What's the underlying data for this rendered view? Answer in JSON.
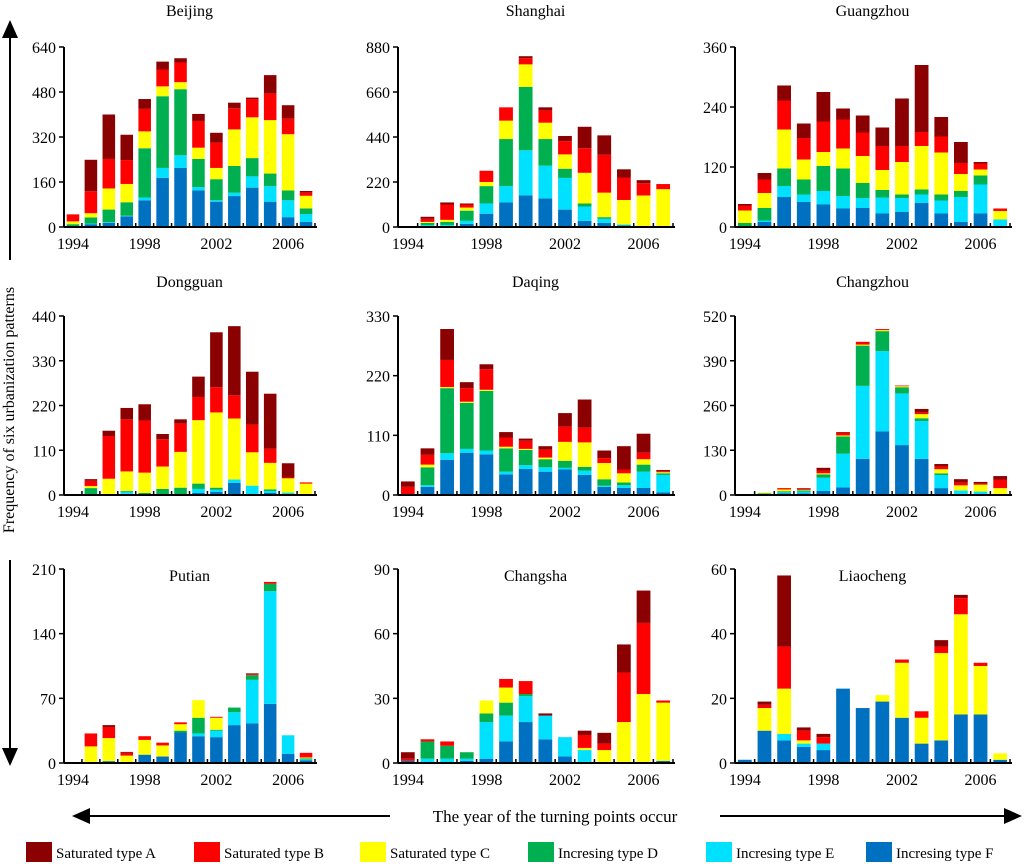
{
  "figure": {
    "ylabel": "Frequency of six urbanization patterns",
    "xlabel": "The year of the turning points occur"
  },
  "chart_data": {
    "type": "bar",
    "stacked": true,
    "years": [
      1994,
      1995,
      1996,
      1997,
      1998,
      1999,
      2000,
      2001,
      2002,
      2003,
      2004,
      2005,
      2006,
      2007
    ],
    "xtick_labels": [
      "1994",
      "1998",
      "2002",
      "2006"
    ],
    "legend": {
      "placement": "bottom",
      "entries": [
        {
          "key": "F",
          "label": "Incresing type F",
          "color": "#0070C0"
        },
        {
          "key": "E",
          "label": "Incresing type E",
          "color": "#00E0FF"
        },
        {
          "key": "D",
          "label": "Incresing type D",
          "color": "#00B050"
        },
        {
          "key": "C",
          "label": "Saturated type C",
          "color": "#FFFF00"
        },
        {
          "key": "B",
          "label": "Saturated type B",
          "color": "#FF0000"
        },
        {
          "key": "A",
          "label": "Saturated type A",
          "color": "#8B0000"
        }
      ],
      "order": [
        "A",
        "B",
        "C",
        "D",
        "E",
        "F"
      ]
    },
    "panels": [
      {
        "title": "Beijing",
        "ylim": [
          0,
          640
        ],
        "yticks": [
          0,
          160,
          320,
          480,
          640
        ],
        "series": {
          "F": [
            2,
            10,
            15,
            38,
            95,
            175,
            210,
            130,
            90,
            110,
            140,
            90,
            35,
            18
          ],
          "E": [
            0,
            2,
            2,
            2,
            10,
            35,
            45,
            12,
            5,
            12,
            40,
            55,
            60,
            28
          ],
          "D": [
            8,
            22,
            45,
            48,
            175,
            255,
            235,
            100,
            75,
            95,
            65,
            45,
            35,
            20
          ],
          "C": [
            10,
            15,
            75,
            65,
            60,
            35,
            25,
            40,
            40,
            130,
            145,
            190,
            200,
            45
          ],
          "B": [
            25,
            78,
            105,
            85,
            80,
            60,
            70,
            95,
            90,
            75,
            65,
            95,
            55,
            12
          ],
          "A": [
            0,
            112,
            158,
            90,
            35,
            28,
            15,
            25,
            35,
            20,
            5,
            65,
            48,
            5
          ]
        }
      },
      {
        "title": "Shanghai",
        "ylim": [
          0,
          880
        ],
        "yticks": [
          0,
          220,
          440,
          660,
          880
        ],
        "series": {
          "F": [
            0,
            5,
            5,
            15,
            65,
            120,
            155,
            140,
            85,
            30,
            20,
            8,
            2,
            0
          ],
          "E": [
            0,
            5,
            5,
            15,
            50,
            80,
            220,
            160,
            155,
            70,
            20,
            4,
            2,
            0
          ],
          "D": [
            0,
            10,
            15,
            50,
            85,
            230,
            310,
            130,
            45,
            15,
            8,
            0,
            0,
            0
          ],
          "C": [
            0,
            5,
            10,
            15,
            20,
            90,
            110,
            80,
            70,
            150,
            120,
            120,
            150,
            185
          ],
          "B": [
            0,
            15,
            75,
            15,
            55,
            65,
            30,
            60,
            65,
            120,
            185,
            110,
            60,
            25
          ],
          "A": [
            0,
            10,
            10,
            5,
            0,
            0,
            10,
            15,
            25,
            105,
            95,
            40,
            15,
            0
          ]
        }
      },
      {
        "title": "Guangzhou",
        "ylim": [
          0,
          360
        ],
        "yticks": [
          0,
          120,
          240,
          360
        ],
        "series": {
          "F": [
            0,
            10,
            60,
            50,
            45,
            37,
            38,
            27,
            30,
            48,
            27,
            10,
            27,
            0
          ],
          "E": [
            0,
            3,
            22,
            15,
            27,
            25,
            20,
            32,
            28,
            17,
            26,
            50,
            58,
            15
          ],
          "D": [
            8,
            25,
            35,
            30,
            50,
            55,
            30,
            15,
            7,
            10,
            12,
            12,
            18,
            0
          ],
          "C": [
            25,
            30,
            78,
            40,
            28,
            40,
            54,
            40,
            65,
            87,
            84,
            34,
            12,
            17
          ],
          "B": [
            10,
            27,
            58,
            43,
            61,
            58,
            47,
            48,
            32,
            28,
            32,
            22,
            12,
            5
          ],
          "A": [
            3,
            13,
            30,
            29,
            59,
            22,
            34,
            37,
            95,
            134,
            39,
            42,
            3,
            0
          ]
        }
      },
      {
        "title": "Dongguan",
        "ylim": [
          0,
          440
        ],
        "yticks": [
          0,
          110,
          220,
          330,
          440
        ],
        "series": {
          "F": [
            0,
            0,
            0,
            3,
            0,
            0,
            0,
            5,
            8,
            30,
            0,
            5,
            3,
            0
          ],
          "E": [
            0,
            0,
            0,
            5,
            0,
            0,
            0,
            10,
            5,
            8,
            23,
            5,
            3,
            0
          ],
          "D": [
            0,
            17,
            0,
            2,
            5,
            15,
            18,
            13,
            5,
            0,
            0,
            4,
            0,
            0
          ],
          "C": [
            0,
            5,
            40,
            48,
            50,
            55,
            88,
            156,
            185,
            150,
            82,
            65,
            35,
            28
          ],
          "B": [
            0,
            13,
            105,
            128,
            128,
            67,
            70,
            57,
            62,
            57,
            68,
            35,
            2,
            3
          ],
          "A": [
            0,
            4,
            13,
            28,
            40,
            13,
            10,
            50,
            135,
            170,
            130,
            135,
            35,
            0
          ]
        }
      },
      {
        "title": "Daqing",
        "ylim": [
          0,
          330
        ],
        "yticks": [
          0,
          110,
          220,
          330
        ],
        "series": {
          "F": [
            0,
            15,
            65,
            78,
            75,
            38,
            48,
            43,
            47,
            37,
            15,
            13,
            13,
            5
          ],
          "E": [
            0,
            3,
            12,
            7,
            7,
            5,
            7,
            8,
            3,
            8,
            2,
            5,
            30,
            32
          ],
          "D": [
            0,
            33,
            120,
            85,
            110,
            43,
            28,
            15,
            13,
            7,
            12,
            5,
            13,
            3
          ],
          "C": [
            0,
            5,
            2,
            2,
            2,
            3,
            2,
            3,
            35,
            45,
            30,
            17,
            10,
            2
          ],
          "B": [
            15,
            18,
            50,
            25,
            38,
            17,
            15,
            15,
            28,
            27,
            9,
            7,
            12,
            2
          ],
          "A": [
            10,
            12,
            57,
            11,
            9,
            10,
            4,
            6,
            25,
            52,
            14,
            43,
            35,
            2
          ]
        }
      },
      {
        "title": "Changzhou",
        "ylim": [
          0,
          520
        ],
        "yticks": [
          0,
          130,
          260,
          390,
          520
        ],
        "series": {
          "F": [
            0,
            0,
            5,
            5,
            12,
            22,
            105,
            185,
            145,
            105,
            20,
            3,
            2,
            0
          ],
          "E": [
            0,
            0,
            3,
            5,
            38,
            98,
            212,
            233,
            150,
            110,
            38,
            10,
            8,
            0
          ],
          "D": [
            0,
            5,
            3,
            3,
            10,
            50,
            117,
            58,
            18,
            8,
            5,
            0,
            0,
            0
          ],
          "C": [
            0,
            2,
            5,
            2,
            3,
            3,
            3,
            3,
            3,
            12,
            12,
            15,
            20,
            20
          ],
          "B": [
            0,
            0,
            4,
            3,
            8,
            8,
            8,
            3,
            2,
            5,
            8,
            8,
            3,
            25
          ],
          "A": [
            0,
            0,
            0,
            2,
            8,
            2,
            0,
            0,
            0,
            10,
            7,
            10,
            5,
            10
          ]
        }
      },
      {
        "title": "Putian",
        "ylim": [
          0,
          210
        ],
        "yticks": [
          0,
          70,
          140,
          210
        ],
        "series": {
          "F": [
            0,
            0,
            2,
            0,
            9,
            7,
            33,
            29,
            28,
            41,
            43,
            64,
            10,
            3
          ],
          "E": [
            0,
            0,
            0,
            0,
            0,
            0,
            0,
            3,
            7,
            14,
            47,
            122,
            20,
            1
          ],
          "D": [
            0,
            0,
            0,
            0,
            0,
            0,
            2,
            17,
            1,
            5,
            5,
            8,
            0,
            1
          ],
          "C": [
            0,
            18,
            25,
            8,
            16,
            12,
            7,
            19,
            13,
            0,
            0,
            0,
            0,
            1
          ],
          "B": [
            1,
            14,
            12,
            3,
            4,
            3,
            2,
            0,
            1,
            0,
            1,
            2,
            0,
            5
          ],
          "A": [
            0,
            0,
            2,
            1,
            0,
            0,
            0,
            0,
            0,
            0,
            1,
            0,
            0,
            0
          ]
        }
      },
      {
        "title": "Changsha",
        "ylim": [
          0,
          90
        ],
        "yticks": [
          0,
          30,
          60,
          90
        ],
        "series": {
          "F": [
            1,
            0,
            0,
            1,
            2,
            10,
            19,
            11,
            3,
            0,
            0,
            0,
            0,
            1
          ],
          "E": [
            0,
            2,
            2,
            1,
            17,
            12,
            12,
            11,
            9,
            6,
            0,
            0,
            0,
            0
          ],
          "D": [
            0,
            8,
            6,
            3,
            4,
            6,
            1,
            0,
            0,
            0,
            0,
            0,
            0,
            0
          ],
          "C": [
            0,
            0,
            0,
            0,
            6,
            7,
            0,
            0,
            0,
            1,
            6,
            19,
            32,
            27
          ],
          "B": [
            1,
            1,
            2,
            0,
            0,
            4,
            6,
            0,
            0,
            6,
            3,
            23,
            33,
            1
          ],
          "A": [
            3,
            0,
            0,
            0,
            0,
            0,
            0,
            1,
            0,
            2,
            5,
            13,
            15,
            0
          ]
        }
      },
      {
        "title": "Liaocheng",
        "ylim": [
          0,
          60
        ],
        "yticks": [
          0,
          20,
          40,
          60
        ],
        "series": {
          "F": [
            1,
            10,
            7,
            5,
            4,
            23,
            17,
            19,
            14,
            6,
            7,
            15,
            15,
            1
          ],
          "E": [
            0,
            0,
            2,
            1,
            2,
            0,
            0,
            0,
            0,
            0,
            0,
            0,
            0,
            0
          ],
          "D": [
            0,
            0,
            0,
            0,
            0,
            0,
            0,
            0,
            0,
            0,
            0,
            0,
            0,
            0
          ],
          "C": [
            0,
            7,
            14,
            1,
            0,
            0,
            0,
            2,
            17,
            8,
            27,
            31,
            15,
            2
          ],
          "B": [
            0,
            1,
            13,
            3,
            2,
            0,
            0,
            0,
            1,
            2,
            2,
            5,
            1,
            0
          ],
          "A": [
            0,
            1,
            22,
            1,
            1,
            0,
            0,
            0,
            0,
            0,
            2,
            1,
            0,
            0
          ]
        }
      }
    ]
  }
}
